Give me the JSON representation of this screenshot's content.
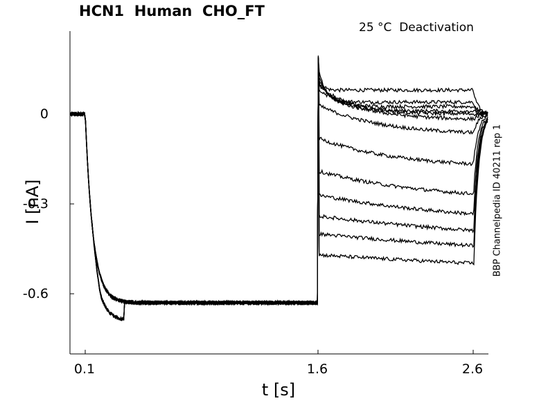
{
  "chart_data": {
    "type": "line",
    "title": "HCN1  Human  CHO_FT",
    "subtitle": "25 °C  Deactivation",
    "side_label": "BBP Channelpedia ID 40211 rep 1",
    "xlabel": "t [s]",
    "ylabel": "I [nA]",
    "xlim": [
      0.12,
      2.78
    ],
    "ylim": [
      -0.8,
      0.28
    ],
    "xticks": [
      {
        "value": 0.1,
        "label": "0.1"
      },
      {
        "value": 1.6,
        "label": "1.6"
      },
      {
        "value": 2.6,
        "label": "2.6"
      }
    ],
    "yticks": [
      {
        "value": 0,
        "label": "0"
      },
      {
        "value": -0.3,
        "label": "-0.3"
      },
      {
        "value": -0.6,
        "label": "-0.6"
      }
    ],
    "grid": false,
    "protocol": {
      "baseline_end": 0.1,
      "activation_level": -0.63,
      "activation_tau": 0.05,
      "step_start": 1.6,
      "step_end": 2.6
    },
    "series": [
      {
        "plateau": 0.08,
        "tau": 0.02
      },
      {
        "plateau": 0.04,
        "tau": 0.05
      },
      {
        "plateau": 0.025,
        "tau": 0.08
      },
      {
        "plateau": 0.01,
        "tau": 0.12
      },
      {
        "plateau": 0.0,
        "tau": 0.2
      },
      {
        "plateau": -0.02,
        "tau": 0.3
      },
      {
        "plateau": -0.07,
        "tau": 0.4
      },
      {
        "plateau": -0.18,
        "tau": 0.5
      },
      {
        "plateau": -0.29,
        "tau": 0.7
      },
      {
        "plateau": -0.37,
        "tau": 1.0
      },
      {
        "plateau": -0.44,
        "tau": 1.5
      },
      {
        "plateau": -0.5,
        "tau": 2.0
      },
      {
        "plateau": -0.57,
        "tau": 3.0
      }
    ]
  }
}
